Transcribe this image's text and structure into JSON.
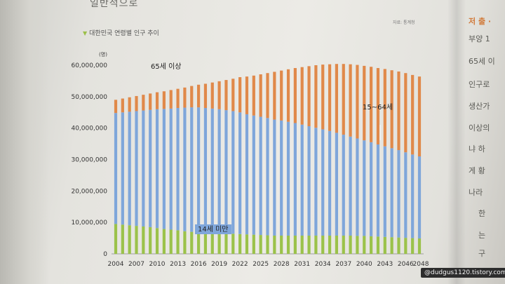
{
  "page": {
    "top_heading": "일반적으로",
    "source_note": "자료: 통계청",
    "chart_title": "대한민국 연령별 인구 추이",
    "side_heading": "저 출 ·",
    "side_lines": [
      "부양 1",
      "65세 이",
      "인구로",
      "생산가",
      "이상의",
      "냐 하",
      "게 황",
      "나라",
      "한",
      "는",
      "구"
    ],
    "watermark": "@dudgus1120.tistory.com"
  },
  "chart_data": {
    "type": "bar",
    "stacked": true,
    "title": "대한민국 연령별 인구 추이",
    "ylabel": "(명)",
    "ylim": [
      0,
      60000000
    ],
    "yticks": [
      0,
      10000000,
      20000000,
      30000000,
      40000000,
      50000000,
      60000000
    ],
    "ytick_labels": [
      "0",
      "10,000,000",
      "20,000,000",
      "30,000,000",
      "40,000,000",
      "50,000,000",
      "60,000,000"
    ],
    "x_start": 2004,
    "x_end": 2048,
    "xtick_labels": [
      "2004",
      "2007",
      "2010",
      "2013",
      "2016",
      "2019",
      "2022",
      "2025",
      "2028",
      "2031",
      "2034",
      "2037",
      "2040",
      "2043",
      "2046",
      "2048"
    ],
    "colors": {
      "under_14": "#9bc24a",
      "age_15_64": "#7fa6da",
      "age_65_plus": "#e0894a"
    },
    "series": [
      {
        "name": "14세 미만",
        "values": [
          9500000,
          9300000,
          9100000,
          8900000,
          8700000,
          8500000,
          8200000,
          7900000,
          7700000,
          7500000,
          7200000,
          7000000,
          6900000,
          6800000,
          6700000,
          6600000,
          6500000,
          6400000,
          6300000,
          6200000,
          6100000,
          6000000,
          5900000,
          5800000,
          5800000,
          5800000,
          5800000,
          5800000,
          5800000,
          5800000,
          5800000,
          5800000,
          5800000,
          5800000,
          5800000,
          5700000,
          5700000,
          5600000,
          5500000,
          5400000,
          5300000,
          5200000,
          5100000,
          5000000,
          4900000
        ]
      },
      {
        "name": "15~64세",
        "values": [
          35300000,
          35700000,
          36100000,
          36500000,
          36900000,
          37300000,
          37800000,
          38200000,
          38500000,
          38900000,
          39300000,
          39600000,
          39700000,
          39600000,
          39500000,
          39400000,
          39200000,
          39000000,
          38700000,
          38200000,
          37900000,
          37600000,
          37300000,
          36900000,
          36600000,
          36200000,
          35800000,
          35300000,
          34800000,
          34300000,
          33800000,
          33300000,
          32700000,
          32100000,
          31500000,
          31000000,
          30400000,
          29900000,
          29300000,
          28800000,
          28300000,
          27800000,
          27200000,
          26600000,
          26100000
        ]
      },
      {
        "name": "65세 이상",
        "values": [
          4200000,
          4400000,
          4600000,
          4800000,
          5000000,
          5200000,
          5400000,
          5600000,
          5900000,
          6100000,
          6400000,
          6800000,
          7200000,
          7700000,
          8300000,
          8900000,
          9600000,
          10300000,
          11200000,
          12000000,
          12700000,
          13500000,
          14300000,
          15200000,
          15900000,
          16700000,
          17500000,
          18300000,
          19100000,
          19900000,
          20600000,
          21200000,
          21900000,
          22500000,
          23000000,
          23400000,
          23700000,
          24000000,
          24300000,
          24600000,
          24800000,
          25000000,
          25200000,
          25300000,
          25400000
        ]
      }
    ],
    "annotations": [
      {
        "text": "65세 이상",
        "series": "65세 이상"
      },
      {
        "text": "15~64세",
        "series": "15~64세"
      },
      {
        "text": "14세 미만",
        "series": "14세 미만"
      }
    ],
    "grid": false,
    "legend": "none"
  }
}
